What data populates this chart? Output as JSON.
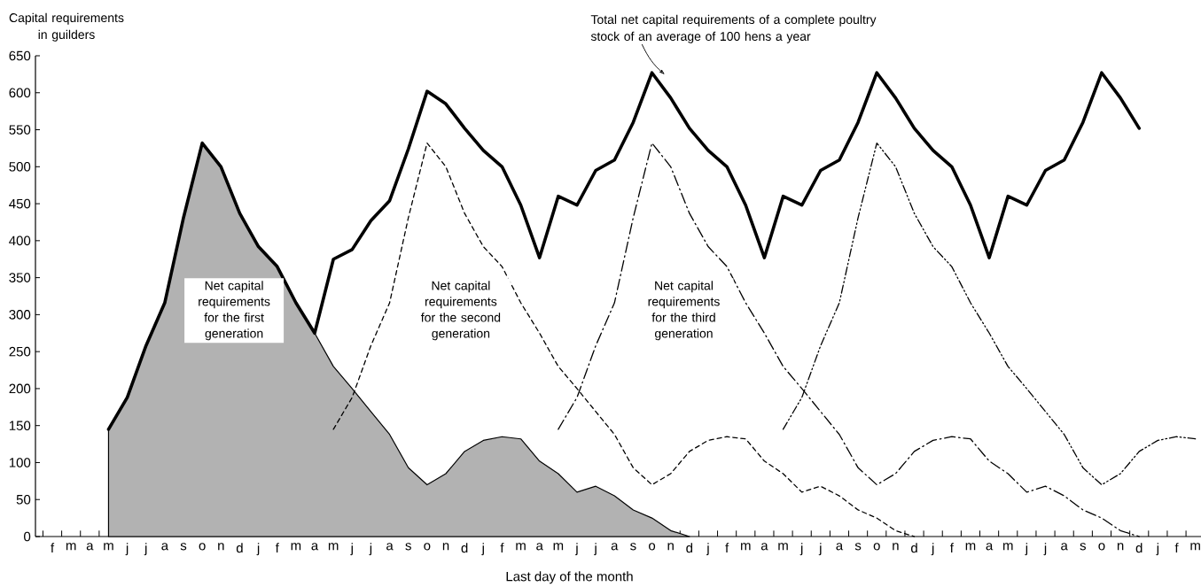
{
  "chart_data": {
    "type": "line",
    "ylabel": "Capital requirements in guilders",
    "xlabel": "Last day of the month",
    "ylim": [
      0,
      650
    ],
    "yticks": [
      0,
      50,
      100,
      150,
      200,
      250,
      300,
      350,
      400,
      450,
      500,
      550,
      600,
      650
    ],
    "categories": [
      "f",
      "m",
      "a",
      "m",
      "j",
      "j",
      "a",
      "s",
      "o",
      "n",
      "d",
      "j",
      "f",
      "m",
      "a",
      "m",
      "j",
      "j",
      "a",
      "s",
      "o",
      "n",
      "d",
      "j",
      "f",
      "m",
      "a",
      "m",
      "j",
      "j",
      "a",
      "s",
      "o",
      "n",
      "d",
      "j",
      "f",
      "m",
      "a",
      "m",
      "j",
      "j",
      "a",
      "s",
      "o",
      "n",
      "d",
      "j",
      "f",
      "m",
      "a",
      "m",
      "j",
      "j",
      "a",
      "s",
      "o",
      "n",
      "d",
      "j",
      "f",
      "m"
    ],
    "series": [
      {
        "type": "area",
        "color": "#000000",
        "line_style": "solid",
        "values": [
          null,
          null,
          null,
          145,
          188,
          258,
          316,
          431,
          532,
          500,
          437,
          392,
          365,
          316,
          275,
          230,
          200,
          169,
          138,
          93,
          70,
          85,
          115,
          130,
          135,
          132,
          102,
          85,
          60,
          68,
          55,
          36,
          25,
          8,
          0,
          null,
          null,
          null,
          null,
          null,
          null,
          null,
          null,
          null,
          null,
          null,
          null,
          null,
          null,
          null,
          null,
          null,
          null,
          null,
          null,
          null,
          null,
          null,
          null,
          null,
          null,
          null
        ]
      },
      {
        "color": "#000000",
        "line_style": "dashed",
        "values": [
          null,
          null,
          null,
          null,
          null,
          null,
          null,
          null,
          null,
          null,
          null,
          null,
          null,
          null,
          null,
          145,
          188,
          258,
          316,
          431,
          532,
          500,
          437,
          392,
          365,
          316,
          275,
          230,
          200,
          169,
          138,
          93,
          70,
          85,
          115,
          130,
          135,
          132,
          102,
          85,
          60,
          68,
          55,
          36,
          25,
          8,
          0,
          null,
          null,
          null,
          null,
          null,
          null,
          null,
          null,
          null,
          null,
          null,
          null,
          null,
          null,
          null
        ]
      },
      {
        "color": "#000000",
        "line_style": "dashdot",
        "values": [
          null,
          null,
          null,
          null,
          null,
          null,
          null,
          null,
          null,
          null,
          null,
          null,
          null,
          null,
          null,
          null,
          null,
          null,
          null,
          null,
          null,
          null,
          null,
          null,
          null,
          null,
          null,
          145,
          188,
          258,
          316,
          431,
          532,
          500,
          437,
          392,
          365,
          316,
          275,
          230,
          200,
          169,
          138,
          93,
          70,
          85,
          115,
          130,
          135,
          132,
          102,
          85,
          60,
          68,
          55,
          36,
          25,
          8,
          0,
          null,
          null,
          null
        ]
      },
      {
        "color": "#000000",
        "line_style": "dashdotdot",
        "values": [
          null,
          null,
          null,
          null,
          null,
          null,
          null,
          null,
          null,
          null,
          null,
          null,
          null,
          null,
          null,
          null,
          null,
          null,
          null,
          null,
          null,
          null,
          null,
          null,
          null,
          null,
          null,
          null,
          null,
          null,
          null,
          null,
          null,
          null,
          null,
          null,
          null,
          null,
          null,
          145,
          188,
          258,
          316,
          431,
          532,
          500,
          437,
          392,
          365,
          316,
          275,
          230,
          200,
          169,
          138,
          93,
          70,
          85,
          115,
          130,
          135,
          132
        ]
      },
      {
        "color": "#000000",
        "line_style": "solid",
        "values": [
          null,
          null,
          null,
          145,
          188,
          258,
          316,
          431,
          532,
          500,
          437,
          392,
          365,
          316,
          275,
          375,
          388,
          427,
          454,
          524,
          602,
          585,
          552,
          522,
          500,
          448,
          377,
          460,
          448,
          495,
          509,
          560,
          627,
          593,
          552,
          522,
          500,
          448,
          377,
          460,
          448,
          495,
          509,
          560,
          627,
          593,
          552,
          522,
          500,
          448,
          377,
          460,
          448,
          495,
          509,
          560,
          627,
          593,
          552,
          null,
          null,
          null
        ]
      }
    ],
    "annotations": [
      "Net capital requirements for the first generation",
      "Net capital requirements for the second generation",
      "Net capital requirements for the third generation",
      "Total net capital requirements of a complete poultry stock of an average of 100 hens a year"
    ]
  }
}
